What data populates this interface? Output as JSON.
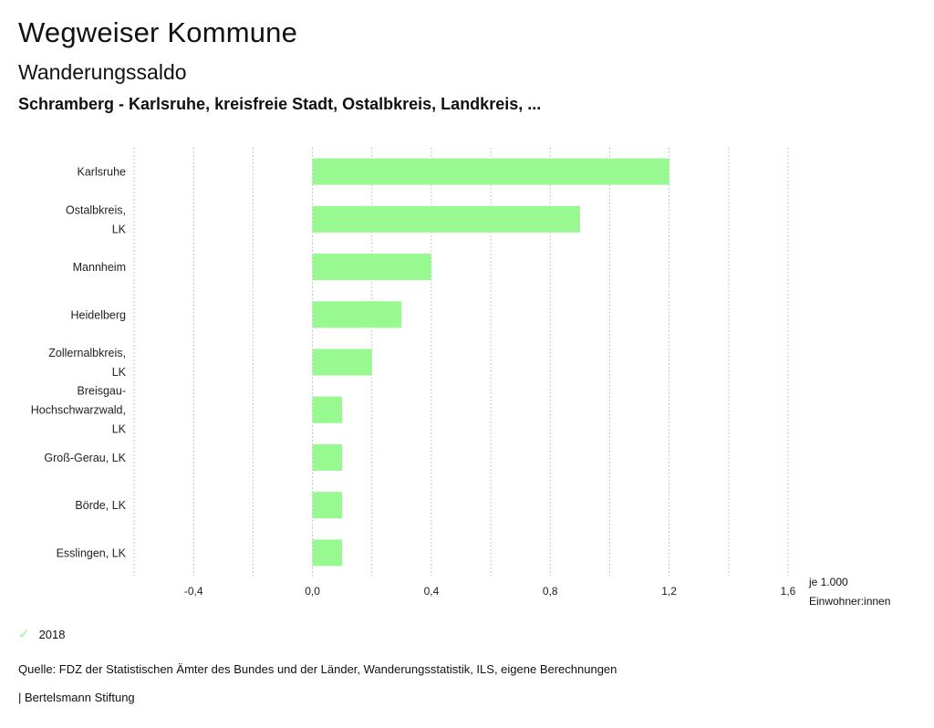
{
  "header": {
    "title": "Wegweiser Kommune",
    "subtitle": "Wanderungssaldo",
    "selection": "Schramberg - Karlsruhe, kreisfreie Stadt, Ostalbkreis, Landkreis, ..."
  },
  "unit": {
    "line1": "je 1.000",
    "line2": "Einwohner:innen"
  },
  "legend": {
    "label": "2018",
    "color": "#98f990"
  },
  "footer": {
    "source": "Quelle: FDZ der Statistischen Ämter des Bundes und der Länder, Wanderungsstatistik, ILS, eigene Berechnungen",
    "credit": "| Bertelsmann Stiftung"
  },
  "chart_data": {
    "type": "bar",
    "orientation": "horizontal",
    "categories": [
      [
        "Karlsruhe"
      ],
      [
        "Ostalbkreis,",
        "LK"
      ],
      [
        "Mannheim"
      ],
      [
        "Heidelberg"
      ],
      [
        "Zollernalbkreis,",
        "LK"
      ],
      [
        "Breisgau-",
        "Hochschwarzwald,",
        "LK"
      ],
      [
        "Groß-Gerau, LK"
      ],
      [
        "Börde, LK"
      ],
      [
        "Esslingen, LK"
      ]
    ],
    "series": [
      {
        "name": "2018",
        "values": [
          1.2,
          0.9,
          0.4,
          0.3,
          0.2,
          0.1,
          0.1,
          0.1,
          0.1
        ],
        "color": "#98f990"
      }
    ],
    "xlim": [
      -0.6,
      1.6
    ],
    "ticks": [
      -0.6,
      -0.4,
      -0.2,
      0.0,
      0.2,
      0.4,
      0.6,
      0.8,
      1.0,
      1.2,
      1.4,
      1.6
    ],
    "tick_labels": [
      "-0,4",
      "0,0",
      "0,4",
      "0,8",
      "1,2",
      "1,6"
    ],
    "labeled_ticks": [
      -0.4,
      0.0,
      0.4,
      0.8,
      1.2,
      1.6
    ],
    "gridlines": "dotted vertical",
    "xlabel": "je 1.000 Einwohner:innen"
  }
}
